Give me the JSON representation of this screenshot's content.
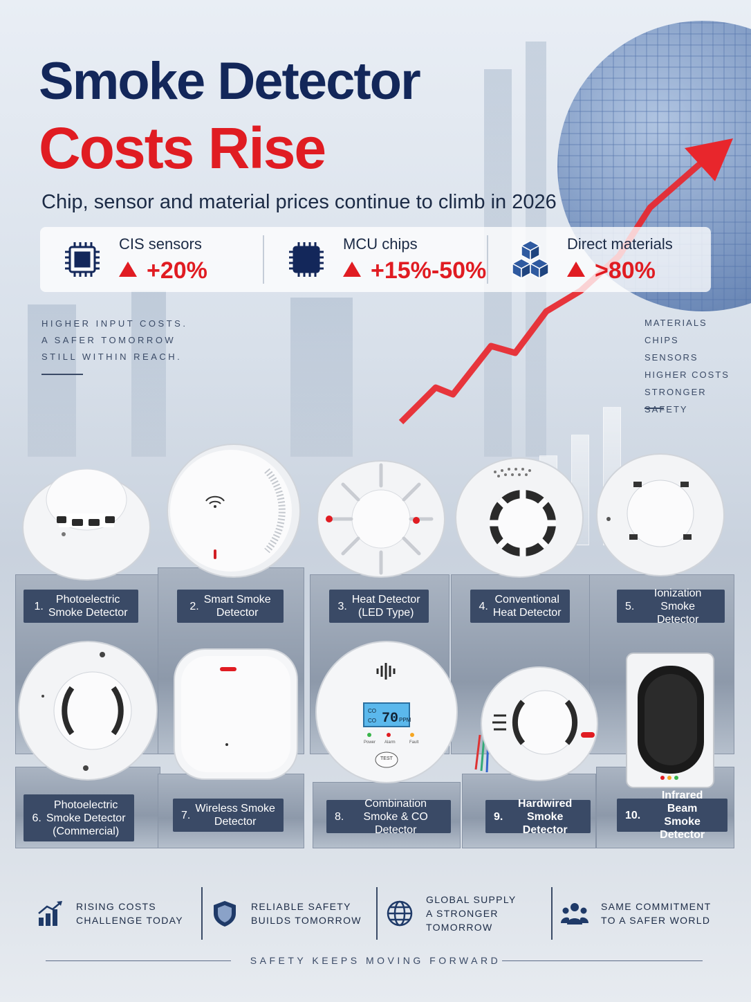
{
  "title_line1": "Smoke Detector",
  "title_line2": "Costs Rise",
  "subtitle": "Chip, sensor and material prices continue to climb in 2026",
  "stats": [
    {
      "label": "CIS sensors",
      "value": "+20%",
      "icon": "chip-icon"
    },
    {
      "label": "MCU chips",
      "value": "+15%-50%",
      "icon": "chip-icon"
    },
    {
      "label": "Direct materials",
      "value": ">80%",
      "icon": "cubes-icon"
    }
  ],
  "note_left": [
    "HIGHER INPUT COSTS.",
    "A SAFER TOMORROW",
    "STILL WITHIN REACH."
  ],
  "note_right": [
    "MATERIALS",
    "CHIPS",
    "SENSORS",
    "HIGHER COSTS",
    "STRONGER SAFETY"
  ],
  "products": [
    {
      "num": "1.",
      "name": [
        "Photoelectric",
        "Smoke Detector"
      ]
    },
    {
      "num": "2.",
      "name": [
        "Smart Smoke",
        "Detector"
      ]
    },
    {
      "num": "3.",
      "name": [
        "Heat Detector",
        "(LED Type)"
      ]
    },
    {
      "num": "4.",
      "name": [
        "Conventional",
        "Heat Detector"
      ]
    },
    {
      "num": "5.",
      "name": [
        "Ionization",
        "Smoke Detector"
      ]
    },
    {
      "num": "6.",
      "name": [
        "Photoelectric",
        "Smoke Detector",
        "(Commercial)"
      ]
    },
    {
      "num": "7.",
      "name": [
        "Wireless Smoke",
        "Detector"
      ]
    },
    {
      "num": "8.",
      "name": [
        "Combination",
        "Smoke & CO Detector"
      ]
    },
    {
      "num": "9.",
      "name": [
        "Hardwired",
        "Smoke Detector"
      ]
    },
    {
      "num": "10.",
      "name": [
        "Infrared Beam",
        "Smoke Detector"
      ]
    }
  ],
  "co_display": {
    "reading": "70",
    "unit": "PPM",
    "co_label": "CO",
    "test": "TEST",
    "lights": [
      "Power",
      "Alarm",
      "Fault"
    ]
  },
  "footer": [
    {
      "text": "RISING COSTS\nCHALLENGE TODAY",
      "icon": "bar-chart-icon"
    },
    {
      "text": "RELIABLE SAFETY\nBUILDS TOMORROW",
      "icon": "shield-icon"
    },
    {
      "text": "GLOBAL SUPPLY\nA STRONGER TOMORROW",
      "icon": "globe-icon"
    },
    {
      "text": "SAME COMMITMENT\nTO A SAFER WORLD",
      "icon": "people-icon"
    }
  ],
  "tagline": "SAFETY KEEPS MOVING FORWARD",
  "colors": {
    "navy": "#13275a",
    "red": "#e01c22",
    "label_bg": "#3a4a66"
  }
}
